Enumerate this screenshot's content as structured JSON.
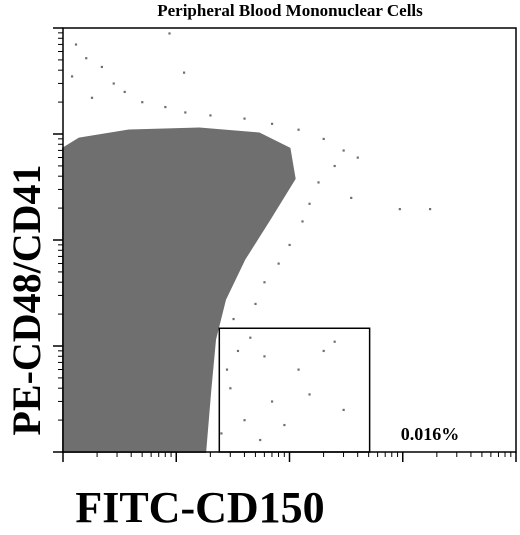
{
  "chart_data": {
    "type": "scatter",
    "title": "Peripheral Blood Mononuclear Cells",
    "x_label": "FITC-CD150",
    "y_label": "PE-CD48/CD41",
    "xscale": "log",
    "yscale": "log",
    "xlim": [
      1,
      10000
    ],
    "ylim": [
      1,
      10000
    ],
    "xticks": [
      1,
      10,
      100,
      1000,
      10000
    ],
    "yticks": [
      1,
      10,
      100,
      1000,
      10000
    ],
    "color": "#6f6f6f",
    "density_region": {
      "x": [
        1,
        1,
        1.39,
        3.84,
        16,
        54,
        100,
        111,
        67,
        40,
        27,
        22,
        20,
        18
      ],
      "y": [
        1,
        729,
        906,
        1080,
        1128,
        1011,
        729,
        379,
        158,
        66,
        27.6,
        11.5,
        3.87,
        1
      ]
    },
    "x": [
      1.3,
      1.6,
      2.2,
      1.2,
      2.8,
      3.5,
      1.8,
      5,
      8,
      12,
      8.7,
      11.7,
      20,
      40,
      70,
      120,
      200,
      300,
      250,
      400,
      180,
      150,
      940,
      1740,
      350,
      130,
      100,
      80,
      60,
      50,
      45,
      35,
      60,
      120,
      200,
      250,
      30,
      70,
      150,
      40,
      90,
      300,
      55,
      25,
      28,
      32
    ],
    "y": [
      7000,
      5200,
      4300,
      3500,
      3000,
      2500,
      2200,
      2000,
      1800,
      1600,
      8900,
      3800,
      1500,
      1400,
      1250,
      1100,
      900,
      700,
      500,
      600,
      350,
      220,
      196,
      196,
      250,
      150,
      90,
      60,
      40,
      25,
      12,
      9,
      8,
      6,
      9,
      11,
      4,
      3,
      3.5,
      2,
      1.8,
      2.5,
      1.3,
      1.5,
      6,
      18
    ],
    "gate": {
      "xlim": [
        24,
        510
      ],
      "ylim": [
        1,
        14.7
      ],
      "value": 0.016,
      "value_label": "0.016%"
    }
  }
}
